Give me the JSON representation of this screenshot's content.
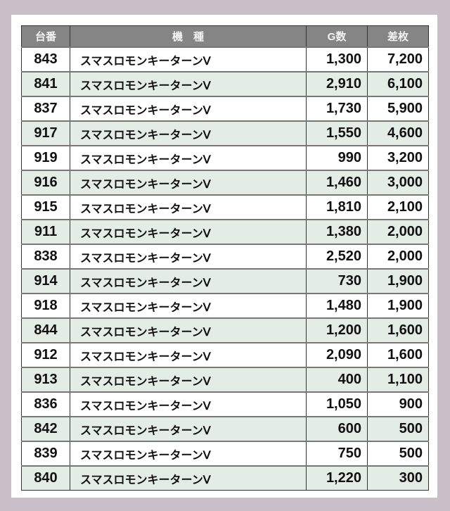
{
  "headers": [
    "台番",
    "機　種",
    "G数",
    "差枚"
  ],
  "colors": {
    "background": "#c9bfc9",
    "header": "#858585",
    "alt_row": "#e4ece6"
  },
  "rows": [
    [
      "843",
      "スマスロモンキーターンⅤ",
      "1,300",
      "7,200"
    ],
    [
      "841",
      "スマスロモンキーターンⅤ",
      "2,910",
      "6,100"
    ],
    [
      "837",
      "スマスロモンキーターンⅤ",
      "1,730",
      "5,900"
    ],
    [
      "917",
      "スマスロモンキーターンⅤ",
      "1,550",
      "4,600"
    ],
    [
      "919",
      "スマスロモンキーターンⅤ",
      "990",
      "3,200"
    ],
    [
      "916",
      "スマスロモンキーターンⅤ",
      "1,460",
      "3,000"
    ],
    [
      "915",
      "スマスロモンキーターンⅤ",
      "1,810",
      "2,100"
    ],
    [
      "911",
      "スマスロモンキーターンⅤ",
      "1,380",
      "2,000"
    ],
    [
      "838",
      "スマスロモンキーターンⅤ",
      "2,520",
      "2,000"
    ],
    [
      "914",
      "スマスロモンキーターンⅤ",
      "730",
      "1,900"
    ],
    [
      "918",
      "スマスロモンキーターンⅤ",
      "1,480",
      "1,900"
    ],
    [
      "844",
      "スマスロモンキーターンⅤ",
      "1,200",
      "1,600"
    ],
    [
      "912",
      "スマスロモンキーターンⅤ",
      "2,090",
      "1,600"
    ],
    [
      "913",
      "スマスロモンキーターンⅤ",
      "400",
      "1,100"
    ],
    [
      "836",
      "スマスロモンキーターンⅤ",
      "1,050",
      "900"
    ],
    [
      "842",
      "スマスロモンキーターンⅤ",
      "600",
      "500"
    ],
    [
      "839",
      "スマスロモンキーターンⅤ",
      "750",
      "500"
    ],
    [
      "840",
      "スマスロモンキーターンⅤ",
      "1,220",
      "300"
    ]
  ]
}
